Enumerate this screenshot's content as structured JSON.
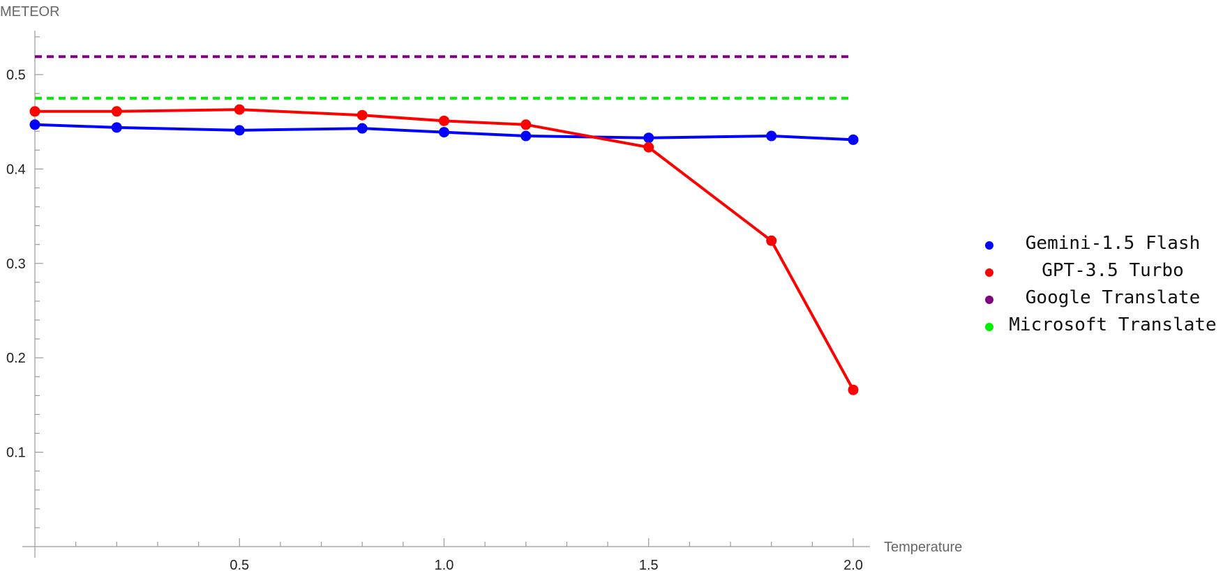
{
  "chart_data": {
    "type": "line",
    "ylabel": "METEOR",
    "xlabel": "Temperature",
    "xlim": [
      0,
      2.0
    ],
    "ylim": [
      0,
      0.5
    ],
    "x_ticks": [
      0.5,
      1.0,
      1.5,
      2.0
    ],
    "x_tick_labels": [
      "0.5",
      "1.0",
      "1.5",
      "2.0"
    ],
    "y_ticks": [
      0.1,
      0.2,
      0.3,
      0.4,
      0.5
    ],
    "y_tick_labels": [
      "0.1",
      "0.2",
      "0.3",
      "0.4",
      "0.5"
    ],
    "grid": false,
    "legend_position": "right",
    "series": [
      {
        "name": "Gemini-1.5 Flash",
        "color": "#0000ff",
        "style": "line-markers",
        "x": [
          0,
          0.2,
          0.5,
          0.8,
          1.0,
          1.2,
          1.5,
          1.8,
          2.0
        ],
        "y": [
          0.447,
          0.444,
          0.441,
          0.443,
          0.439,
          0.435,
          0.433,
          0.435,
          0.431
        ]
      },
      {
        "name": "GPT-3.5 Turbo",
        "color": "#ff0000",
        "style": "line-markers",
        "x": [
          0,
          0.2,
          0.5,
          0.8,
          1.0,
          1.2,
          1.5,
          1.8,
          2.0
        ],
        "y": [
          0.461,
          0.461,
          0.463,
          0.457,
          0.451,
          0.447,
          0.423,
          0.324,
          0.166
        ]
      },
      {
        "name": "Google Translate",
        "color": "#800080",
        "style": "dashed-constant",
        "x": [
          0,
          2.0
        ],
        "y": [
          0.519,
          0.519
        ]
      },
      {
        "name": "Microsoft Translate",
        "color": "#00ee00",
        "style": "dashed-constant",
        "x": [
          0,
          2.0
        ],
        "y": [
          0.475,
          0.475
        ]
      }
    ]
  }
}
